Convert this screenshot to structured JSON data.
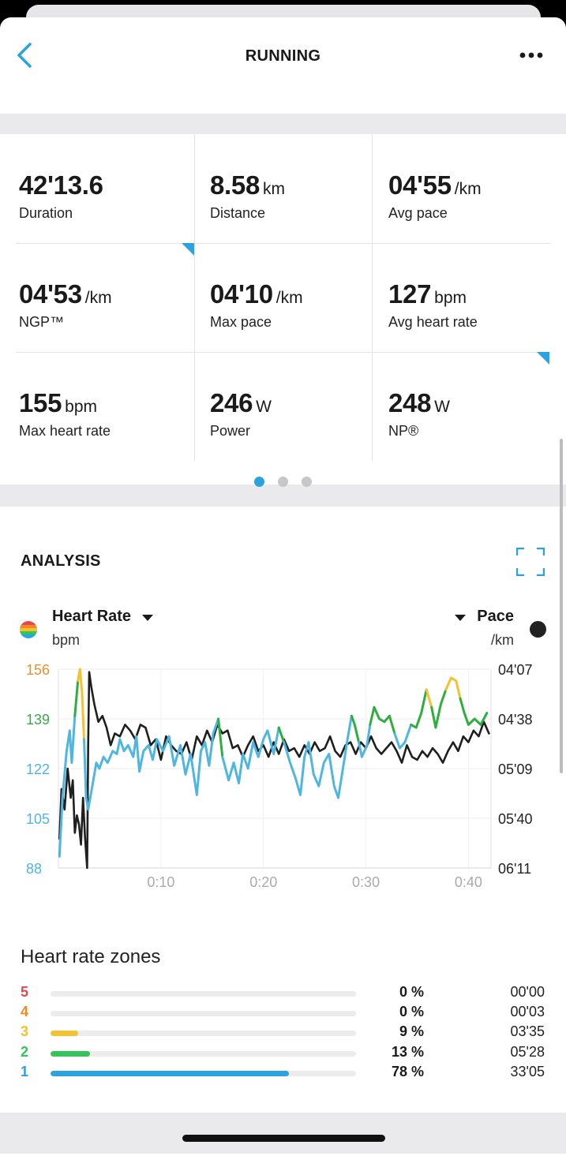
{
  "header": {
    "title": "RUNNING"
  },
  "stats": [
    {
      "value": "42'13.6",
      "unit": "",
      "label": "Duration"
    },
    {
      "value": "8.58",
      "unit": "km",
      "label": "Distance"
    },
    {
      "value": "04'55",
      "unit": "/km",
      "label": "Avg pace"
    },
    {
      "value": "04'53",
      "unit": "/km",
      "label": "NGP™"
    },
    {
      "value": "04'10",
      "unit": "/km",
      "label": "Max pace"
    },
    {
      "value": "127",
      "unit": "bpm",
      "label": "Avg heart rate"
    },
    {
      "value": "155",
      "unit": "bpm",
      "label": "Max heart rate"
    },
    {
      "value": "246",
      "unit": "W",
      "label": "Power"
    },
    {
      "value": "248",
      "unit": "W",
      "label": "NP®"
    }
  ],
  "pager": {
    "pages": 3,
    "active": 0
  },
  "analysis": {
    "title": "ANALYSIS",
    "left_metric": {
      "name": "Heart Rate",
      "unit": "bpm"
    },
    "right_metric": {
      "name": "Pace",
      "unit": "/km"
    }
  },
  "chart_data": {
    "type": "line",
    "x_ticks": [
      "0:10",
      "0:20",
      "0:30",
      "0:40"
    ],
    "x_tick_values": [
      10,
      20,
      30,
      40
    ],
    "xlim": [
      0,
      42.2
    ],
    "y_left": {
      "ticks": [
        "156",
        "139",
        "122",
        "105",
        "88"
      ],
      "ylim": [
        88,
        156
      ],
      "tick_colors": [
        "#e8902a",
        "#3aa84a",
        "#4fb6e0",
        "#4fb6e0",
        "#4fb6e0"
      ]
    },
    "y_right": {
      "ticks": [
        "04'07",
        "04'38",
        "05'09",
        "05'40",
        "06'11"
      ]
    },
    "zone_colors": {
      "zone1": "#4fb6e0",
      "zone2": "#2fae3e",
      "zone3": "#f2c230"
    },
    "series": [
      {
        "name": "Heart Rate",
        "color": "#4fb6e0",
        "points": [
          [
            0.1,
            92
          ],
          [
            0.4,
            112
          ],
          [
            0.8,
            128
          ],
          [
            1.1,
            135
          ],
          [
            1.3,
            124
          ],
          [
            1.6,
            140
          ],
          [
            1.9,
            152
          ],
          [
            2.1,
            156
          ],
          [
            2.3,
            148
          ],
          [
            2.5,
            132
          ],
          [
            2.7,
            112
          ],
          [
            2.9,
            108
          ],
          [
            3.1,
            112
          ],
          [
            3.4,
            118
          ],
          [
            3.7,
            124
          ],
          [
            4.0,
            122
          ],
          [
            4.4,
            126
          ],
          [
            4.8,
            124
          ],
          [
            5.3,
            128
          ],
          [
            5.7,
            127
          ],
          [
            6.0,
            132
          ],
          [
            6.4,
            128
          ],
          [
            6.8,
            130
          ],
          [
            7.3,
            126
          ],
          [
            7.6,
            133
          ],
          [
            7.9,
            121
          ],
          [
            8.3,
            128
          ],
          [
            8.8,
            130
          ],
          [
            9.2,
            125
          ],
          [
            9.6,
            132
          ],
          [
            10.2,
            128
          ],
          [
            10.8,
            133
          ],
          [
            11.3,
            123
          ],
          [
            11.9,
            130
          ],
          [
            12.4,
            120
          ],
          [
            12.9,
            127
          ],
          [
            13.5,
            113
          ],
          [
            13.9,
            128
          ],
          [
            14.3,
            131
          ],
          [
            14.7,
            123
          ],
          [
            15.1,
            134
          ],
          [
            15.6,
            139
          ],
          [
            16.0,
            126
          ],
          [
            16.6,
            118
          ],
          [
            17.1,
            124
          ],
          [
            17.6,
            117
          ],
          [
            18.0,
            127
          ],
          [
            18.5,
            122
          ],
          [
            19.0,
            131
          ],
          [
            19.5,
            126
          ],
          [
            20.0,
            132
          ],
          [
            20.4,
            135
          ],
          [
            21.0,
            127
          ],
          [
            21.5,
            136
          ],
          [
            22.0,
            131
          ],
          [
            22.6,
            124
          ],
          [
            23.1,
            119
          ],
          [
            23.6,
            113
          ],
          [
            24.0,
            126
          ],
          [
            24.4,
            131
          ],
          [
            24.9,
            120
          ],
          [
            25.4,
            116
          ],
          [
            25.9,
            124
          ],
          [
            26.4,
            127
          ],
          [
            26.9,
            116
          ],
          [
            27.3,
            112
          ],
          [
            27.8,
            123
          ],
          [
            28.2,
            132
          ],
          [
            28.6,
            140
          ],
          [
            28.9,
            137
          ],
          [
            29.3,
            131
          ],
          [
            29.6,
            126
          ],
          [
            30.1,
            130
          ],
          [
            30.4,
            137
          ],
          [
            30.8,
            143
          ],
          [
            31.3,
            139
          ],
          [
            31.8,
            138
          ],
          [
            32.3,
            140
          ],
          [
            32.8,
            134
          ],
          [
            33.3,
            129
          ],
          [
            33.8,
            131
          ],
          [
            34.4,
            137
          ],
          [
            34.9,
            136
          ],
          [
            35.4,
            141
          ],
          [
            35.9,
            149
          ],
          [
            36.4,
            143
          ],
          [
            36.8,
            136
          ],
          [
            37.3,
            144
          ],
          [
            37.8,
            149
          ],
          [
            38.3,
            153
          ],
          [
            38.8,
            152
          ],
          [
            39.2,
            146
          ],
          [
            39.6,
            141
          ],
          [
            40.0,
            137
          ],
          [
            40.6,
            139
          ],
          [
            41.2,
            137
          ],
          [
            41.8,
            141
          ]
        ]
      },
      {
        "name": "Pace",
        "color": "#1f1f1f",
        "points": [
          [
            0.1,
            98
          ],
          [
            0.3,
            115
          ],
          [
            0.6,
            108
          ],
          [
            0.9,
            122
          ],
          [
            1.2,
            112
          ],
          [
            1.4,
            118
          ],
          [
            1.6,
            100
          ],
          [
            1.8,
            106
          ],
          [
            2.0,
            103
          ],
          [
            2.2,
            96
          ],
          [
            2.4,
            112
          ],
          [
            2.6,
            98
          ],
          [
            2.8,
            88
          ],
          [
            2.9,
            130
          ],
          [
            3.0,
            155
          ],
          [
            3.2,
            150
          ],
          [
            3.5,
            144
          ],
          [
            3.9,
            138
          ],
          [
            4.3,
            140
          ],
          [
            4.7,
            136
          ],
          [
            5.1,
            130
          ],
          [
            5.5,
            134
          ],
          [
            6.0,
            133
          ],
          [
            6.5,
            137
          ],
          [
            7.0,
            135
          ],
          [
            7.5,
            132
          ],
          [
            8.0,
            137
          ],
          [
            8.5,
            136
          ],
          [
            9.0,
            130
          ],
          [
            9.5,
            132
          ],
          [
            10.0,
            125
          ],
          [
            10.5,
            133
          ],
          [
            11.0,
            130
          ],
          [
            11.5,
            128
          ],
          [
            12.0,
            127
          ],
          [
            12.5,
            131
          ],
          [
            13.0,
            125
          ],
          [
            13.5,
            133
          ],
          [
            14.0,
            130
          ],
          [
            14.5,
            135
          ],
          [
            15.0,
            131
          ],
          [
            15.5,
            137
          ],
          [
            16.0,
            134
          ],
          [
            16.5,
            135
          ],
          [
            17.0,
            129
          ],
          [
            17.5,
            130
          ],
          [
            18.0,
            126
          ],
          [
            18.5,
            130
          ],
          [
            19.0,
            133
          ],
          [
            19.5,
            128
          ],
          [
            20.0,
            130
          ],
          [
            20.5,
            126
          ],
          [
            21.0,
            131
          ],
          [
            21.5,
            127
          ],
          [
            22.0,
            132
          ],
          [
            22.5,
            128
          ],
          [
            23.0,
            129
          ],
          [
            23.5,
            126
          ],
          [
            24.0,
            130
          ],
          [
            24.5,
            127
          ],
          [
            25.0,
            131
          ],
          [
            25.5,
            128
          ],
          [
            26.0,
            129
          ],
          [
            26.5,
            133
          ],
          [
            27.0,
            128
          ],
          [
            27.5,
            126
          ],
          [
            28.0,
            130
          ],
          [
            28.5,
            131
          ],
          [
            29.0,
            127
          ],
          [
            29.5,
            131
          ],
          [
            30.0,
            129
          ],
          [
            30.5,
            133
          ],
          [
            31.0,
            129
          ],
          [
            31.5,
            127
          ],
          [
            32.0,
            129
          ],
          [
            32.5,
            131
          ],
          [
            33.0,
            128
          ],
          [
            33.5,
            124
          ],
          [
            34.0,
            130
          ],
          [
            34.5,
            126
          ],
          [
            35.0,
            125
          ],
          [
            35.5,
            128
          ],
          [
            36.0,
            126
          ],
          [
            36.5,
            129
          ],
          [
            37.0,
            127
          ],
          [
            37.5,
            124
          ],
          [
            38.0,
            128
          ],
          [
            38.5,
            131
          ],
          [
            39.0,
            128
          ],
          [
            39.5,
            133
          ],
          [
            40.0,
            131
          ],
          [
            40.5,
            135
          ],
          [
            41.0,
            133
          ],
          [
            41.5,
            138
          ],
          [
            42.0,
            134
          ]
        ]
      }
    ]
  },
  "zones": {
    "title": "Heart rate zones",
    "items": [
      {
        "zone": "5",
        "percent": "0 %",
        "time": "00'00",
        "fraction": 0.0,
        "color": "#e5484d"
      },
      {
        "zone": "4",
        "percent": "0 %",
        "time": "00'03",
        "fraction": 0.0,
        "color": "#f08a24"
      },
      {
        "zone": "3",
        "percent": "9 %",
        "time": "03'35",
        "fraction": 0.09,
        "color": "#f2c230"
      },
      {
        "zone": "2",
        "percent": "13 %",
        "time": "05'28",
        "fraction": 0.13,
        "color": "#36c45a"
      },
      {
        "zone": "1",
        "percent": "78 %",
        "time": "33'05",
        "fraction": 0.78,
        "color": "#2aa3df"
      }
    ]
  }
}
